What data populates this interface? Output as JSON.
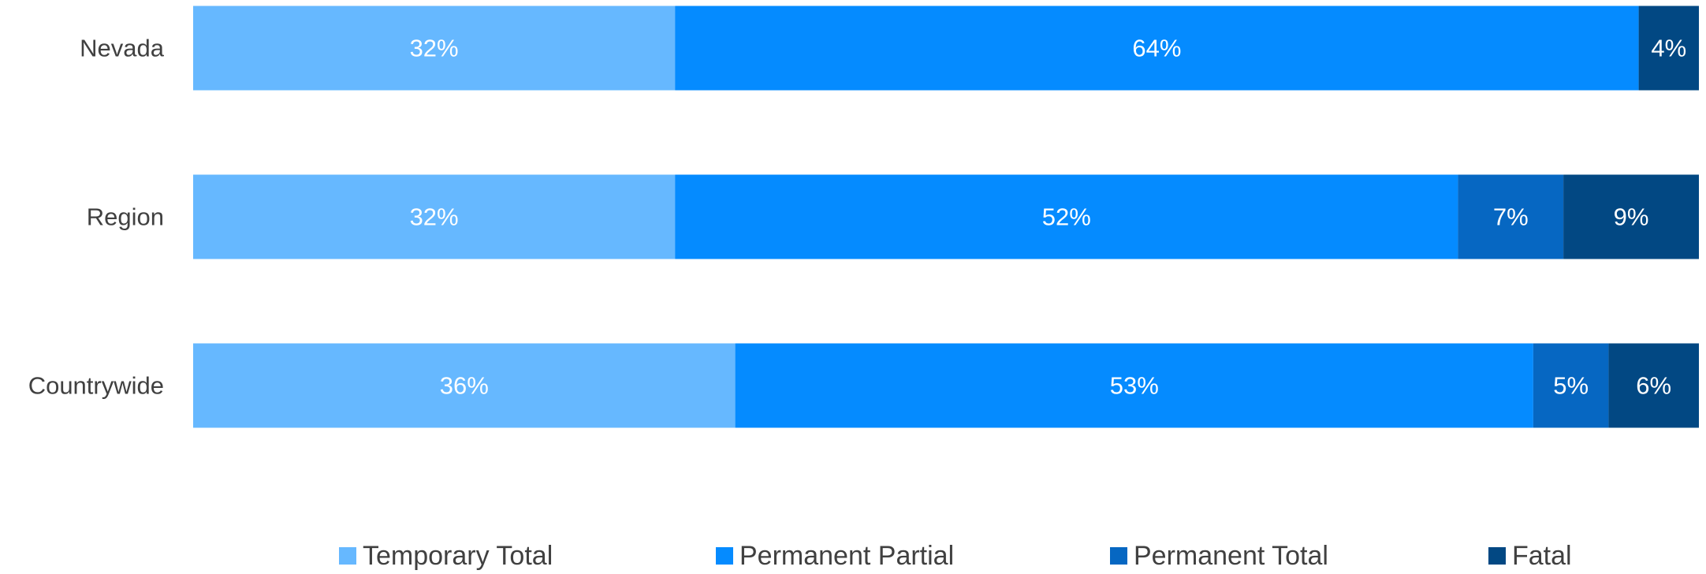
{
  "chart_data": {
    "type": "bar",
    "orientation": "horizontal",
    "stacked": true,
    "categories": [
      "Nevada",
      "Region",
      "Countrywide"
    ],
    "series": [
      {
        "name": "Temporary Total",
        "color": "#66B8FF",
        "values": [
          32,
          32,
          36
        ],
        "labels": [
          "32%",
          "32%",
          "36%"
        ]
      },
      {
        "name": "Permanent Partial",
        "color": "#058BFF",
        "values": [
          64,
          52,
          53
        ],
        "labels": [
          "64%",
          "52%",
          "53%"
        ]
      },
      {
        "name": "Permanent Total",
        "color": "#0667C2",
        "values": [
          0,
          7,
          5
        ],
        "labels": [
          "",
          "7%",
          "5%"
        ]
      },
      {
        "name": "Fatal",
        "color": "#024883",
        "values": [
          4,
          9,
          6
        ],
        "labels": [
          "4%",
          "9%",
          "6%"
        ]
      }
    ],
    "xlim": [
      0,
      100
    ],
    "grid": false,
    "legend": "bottom",
    "title": "",
    "xlabel": "",
    "ylabel": ""
  }
}
